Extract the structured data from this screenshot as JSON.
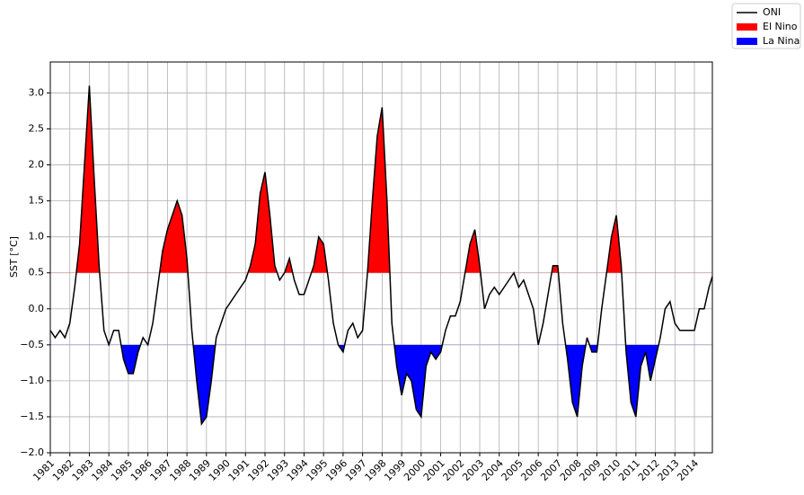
{
  "chart_data": {
    "type": "line",
    "y_label": "SST [°C]",
    "x": [
      1981,
      1981.25,
      1981.5,
      1981.75,
      1982,
      1982.25,
      1982.5,
      1982.75,
      1983,
      1983.25,
      1983.5,
      1983.75,
      1984,
      1984.25,
      1984.5,
      1984.75,
      1985,
      1985.25,
      1985.5,
      1985.75,
      1986,
      1986.25,
      1986.5,
      1986.75,
      1987,
      1987.25,
      1987.5,
      1987.75,
      1988,
      1988.25,
      1988.5,
      1988.75,
      1989,
      1989.25,
      1989.5,
      1989.75,
      1990,
      1990.25,
      1990.5,
      1990.75,
      1991,
      1991.25,
      1991.5,
      1991.75,
      1992,
      1992.25,
      1992.5,
      1992.75,
      1993,
      1993.25,
      1993.5,
      1993.75,
      1994,
      1994.25,
      1994.5,
      1994.75,
      1995,
      1995.25,
      1995.5,
      1995.75,
      1996,
      1996.25,
      1996.5,
      1996.75,
      1997,
      1997.25,
      1997.5,
      1997.75,
      1998,
      1998.25,
      1998.5,
      1998.75,
      1999,
      1999.25,
      1999.5,
      1999.75,
      2000,
      2000.25,
      2000.5,
      2000.75,
      2001,
      2001.25,
      2001.5,
      2001.75,
      2002,
      2002.25,
      2002.5,
      2002.75,
      2003,
      2003.25,
      2003.5,
      2003.75,
      2004,
      2004.25,
      2004.5,
      2004.75,
      2005,
      2005.25,
      2005.5,
      2005.75,
      2006,
      2006.25,
      2006.5,
      2006.75,
      2007,
      2007.25,
      2007.5,
      2007.75,
      2008,
      2008.25,
      2008.5,
      2008.75,
      2009,
      2009.25,
      2009.5,
      2009.75,
      2010,
      2010.25,
      2010.5,
      2010.75,
      2011,
      2011.25,
      2011.5,
      2011.75,
      2012,
      2012.25,
      2012.5,
      2012.75,
      2013,
      2013.25,
      2013.5,
      2013.75,
      2014,
      2014.25,
      2014.5,
      2014.75,
      2014.92
    ],
    "series": [
      {
        "name": "ONI",
        "color": "#000000",
        "values": [
          -0.3,
          -0.4,
          -0.3,
          -0.4,
          -0.2,
          0.3,
          0.9,
          2.0,
          3.1,
          1.8,
          0.6,
          -0.3,
          -0.5,
          -0.3,
          -0.3,
          -0.7,
          -0.9,
          -0.9,
          -0.6,
          -0.4,
          -0.5,
          -0.2,
          0.3,
          0.8,
          1.1,
          1.3,
          1.5,
          1.3,
          0.7,
          -0.3,
          -1.0,
          -1.6,
          -1.5,
          -1.0,
          -0.4,
          -0.2,
          0.0,
          0.1,
          0.2,
          0.3,
          0.4,
          0.6,
          0.9,
          1.6,
          1.9,
          1.3,
          0.6,
          0.4,
          0.5,
          0.7,
          0.4,
          0.2,
          0.2,
          0.4,
          0.6,
          1.0,
          0.9,
          0.4,
          -0.2,
          -0.5,
          -0.6,
          -0.3,
          -0.2,
          -0.4,
          -0.3,
          0.5,
          1.5,
          2.4,
          2.8,
          1.5,
          -0.2,
          -0.8,
          -1.2,
          -0.9,
          -1.0,
          -1.4,
          -1.5,
          -0.8,
          -0.6,
          -0.7,
          -0.6,
          -0.3,
          -0.1,
          -0.1,
          0.1,
          0.5,
          0.9,
          1.1,
          0.6,
          0.0,
          0.2,
          0.3,
          0.2,
          0.3,
          0.4,
          0.5,
          0.3,
          0.4,
          0.2,
          0.0,
          -0.5,
          -0.2,
          0.2,
          0.6,
          0.6,
          -0.2,
          -0.7,
          -1.3,
          -1.5,
          -0.8,
          -0.4,
          -0.6,
          -0.6,
          0.0,
          0.5,
          1.0,
          1.3,
          0.6,
          -0.6,
          -1.3,
          -1.5,
          -0.8,
          -0.6,
          -1.0,
          -0.7,
          -0.4,
          0.0,
          0.1,
          -0.2,
          -0.3,
          -0.3,
          -0.3,
          -0.3,
          0.0,
          0.0,
          0.3,
          0.45
        ]
      },
      {
        "name": "El Nino",
        "color": "#ff0000",
        "threshold": 0.5
      },
      {
        "name": "La Nina",
        "color": "#0000ff",
        "threshold": -0.5
      }
    ],
    "xlim": [
      1981,
      2014.92
    ],
    "xticks": [
      1981,
      1982,
      1983,
      1984,
      1985,
      1986,
      1987,
      1988,
      1989,
      1990,
      1991,
      1992,
      1993,
      1994,
      1995,
      1996,
      1997,
      1998,
      1999,
      2000,
      2001,
      2002,
      2003,
      2004,
      2005,
      2006,
      2007,
      2008,
      2009,
      2010,
      2011,
      2012,
      2013,
      2014
    ],
    "ylim": [
      -2.0,
      3.43
    ],
    "yticks": [
      {
        "value": -2.0,
        "label": "−2.0"
      },
      {
        "value": -1.5,
        "label": "−1.5"
      },
      {
        "value": -1.0,
        "label": "−1.0"
      },
      {
        "value": -0.5,
        "label": "−0.5"
      },
      {
        "value": 0.0,
        "label": "0.0"
      },
      {
        "value": 0.5,
        "label": "0.5"
      },
      {
        "value": 1.0,
        "label": "1.0"
      },
      {
        "value": 1.5,
        "label": "1.5"
      },
      {
        "value": 2.0,
        "label": "2.0"
      },
      {
        "value": 2.5,
        "label": "2.5"
      },
      {
        "value": 3.0,
        "label": "3.0"
      }
    ],
    "grid": true,
    "legend": "upper right"
  }
}
